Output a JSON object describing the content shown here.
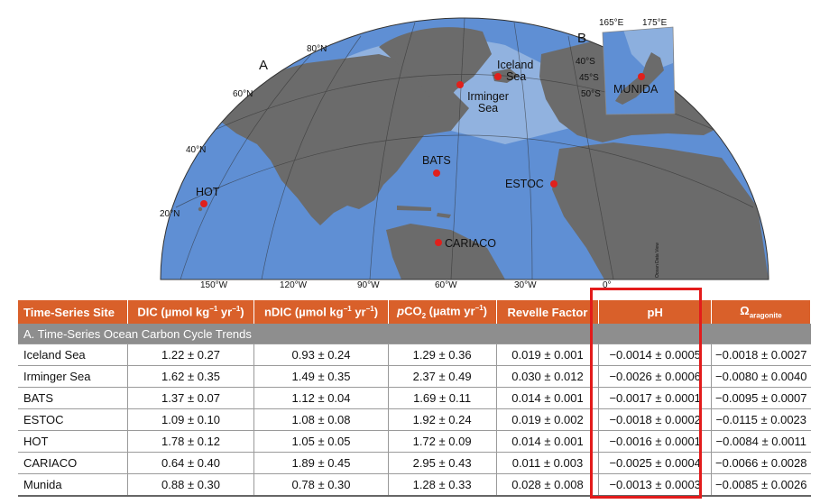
{
  "map": {
    "panel_a_label": "A",
    "panel_b_label": "B",
    "lat_labels": [
      "80°N",
      "60°N",
      "40°N",
      "20°N"
    ],
    "lon_labels": [
      "150°W",
      "120°W",
      "90°W",
      "60°W",
      "30°W",
      "0°"
    ],
    "sites": [
      "Iceland Sea",
      "Irminger Sea",
      "BATS",
      "ESTOC",
      "HOT",
      "CARIACO"
    ],
    "inset": {
      "lon_labels": [
        "165°E",
        "175°E"
      ],
      "lat_labels": [
        "40°S",
        "45°S",
        "50°S"
      ],
      "site": "MUNIDA"
    },
    "credit": "Ocean Data View",
    "colors": {
      "land": "#6b6b6b",
      "ocean": "#5f8fd4",
      "site_dot": "#e0201c"
    }
  },
  "table": {
    "headers": {
      "site": "Time-Series Site",
      "dic": "DIC (µmol kg",
      "dic_unit_exp": "−1",
      "dic_unit_yr": " yr",
      "dic_unit_yr_exp": "−1",
      "dic_close": ")",
      "ndic": "nDIC (µmol kg",
      "pco2_p": "p",
      "pco2_co": "CO",
      "pco2_sub": "2",
      "pco2_unit": " (µatm yr",
      "pco2_exp": "−1",
      "pco2_close": ")",
      "revelle": "Revelle Factor",
      "ph": "pH",
      "omega": "Ω",
      "omega_sub": "aragonite"
    },
    "section_label": "A. Time-Series Ocean Carbon Cycle Trends",
    "rows": [
      {
        "site": "Iceland Sea",
        "dic": "1.22 ± 0.27",
        "ndic": "0.93 ± 0.24",
        "pco2": "1.29 ± 0.36",
        "revelle": "0.019 ± 0.001",
        "ph": "−0.0014 ± 0.0005",
        "omega": "−0.0018 ± 0.0027"
      },
      {
        "site": "Irminger Sea",
        "dic": "1.62 ± 0.35",
        "ndic": "1.49 ± 0.35",
        "pco2": "2.37 ± 0.49",
        "revelle": "0.030 ± 0.012",
        "ph": "−0.0026 ± 0.0006",
        "omega": "−0.0080 ± 0.0040"
      },
      {
        "site": "BATS",
        "dic": "1.37 ± 0.07",
        "ndic": "1.12 ± 0.04",
        "pco2": "1.69 ± 0.11",
        "revelle": "0.014 ± 0.001",
        "ph": "−0.0017 ± 0.0001",
        "omega": "−0.0095 ± 0.0007"
      },
      {
        "site": "ESTOC",
        "dic": "1.09 ± 0.10",
        "ndic": "1.08 ± 0.08",
        "pco2": "1.92 ± 0.24",
        "revelle": "0.019 ± 0.002",
        "ph": "−0.0018 ± 0.0002",
        "omega": "−0.0115 ± 0.0023"
      },
      {
        "site": "HOT",
        "dic": "1.78 ± 0.12",
        "ndic": "1.05 ± 0.05",
        "pco2": "1.72 ± 0.09",
        "revelle": "0.014 ± 0.001",
        "ph": "−0.0016 ± 0.0001",
        "omega": "−0.0084 ± 0.0011"
      },
      {
        "site": "CARIACO",
        "dic": "0.64 ± 0.40",
        "ndic": "1.89 ± 0.45",
        "pco2": "2.95 ± 0.43",
        "revelle": "0.011 ± 0.003",
        "ph": "−0.0025 ± 0.0004",
        "omega": "−0.0066 ± 0.0028"
      },
      {
        "site": "Munida",
        "dic": "0.88 ± 0.30",
        "ndic": "0.78 ± 0.30",
        "pco2": "1.28 ± 0.33",
        "revelle": "0.028 ± 0.008",
        "ph": "−0.0013 ± 0.0003",
        "omega": "−0.0085 ± 0.0026"
      }
    ],
    "colors": {
      "header_bg": "#d9602a",
      "section_bg": "#8e8e8e",
      "highlight": "#e31b1b"
    }
  }
}
